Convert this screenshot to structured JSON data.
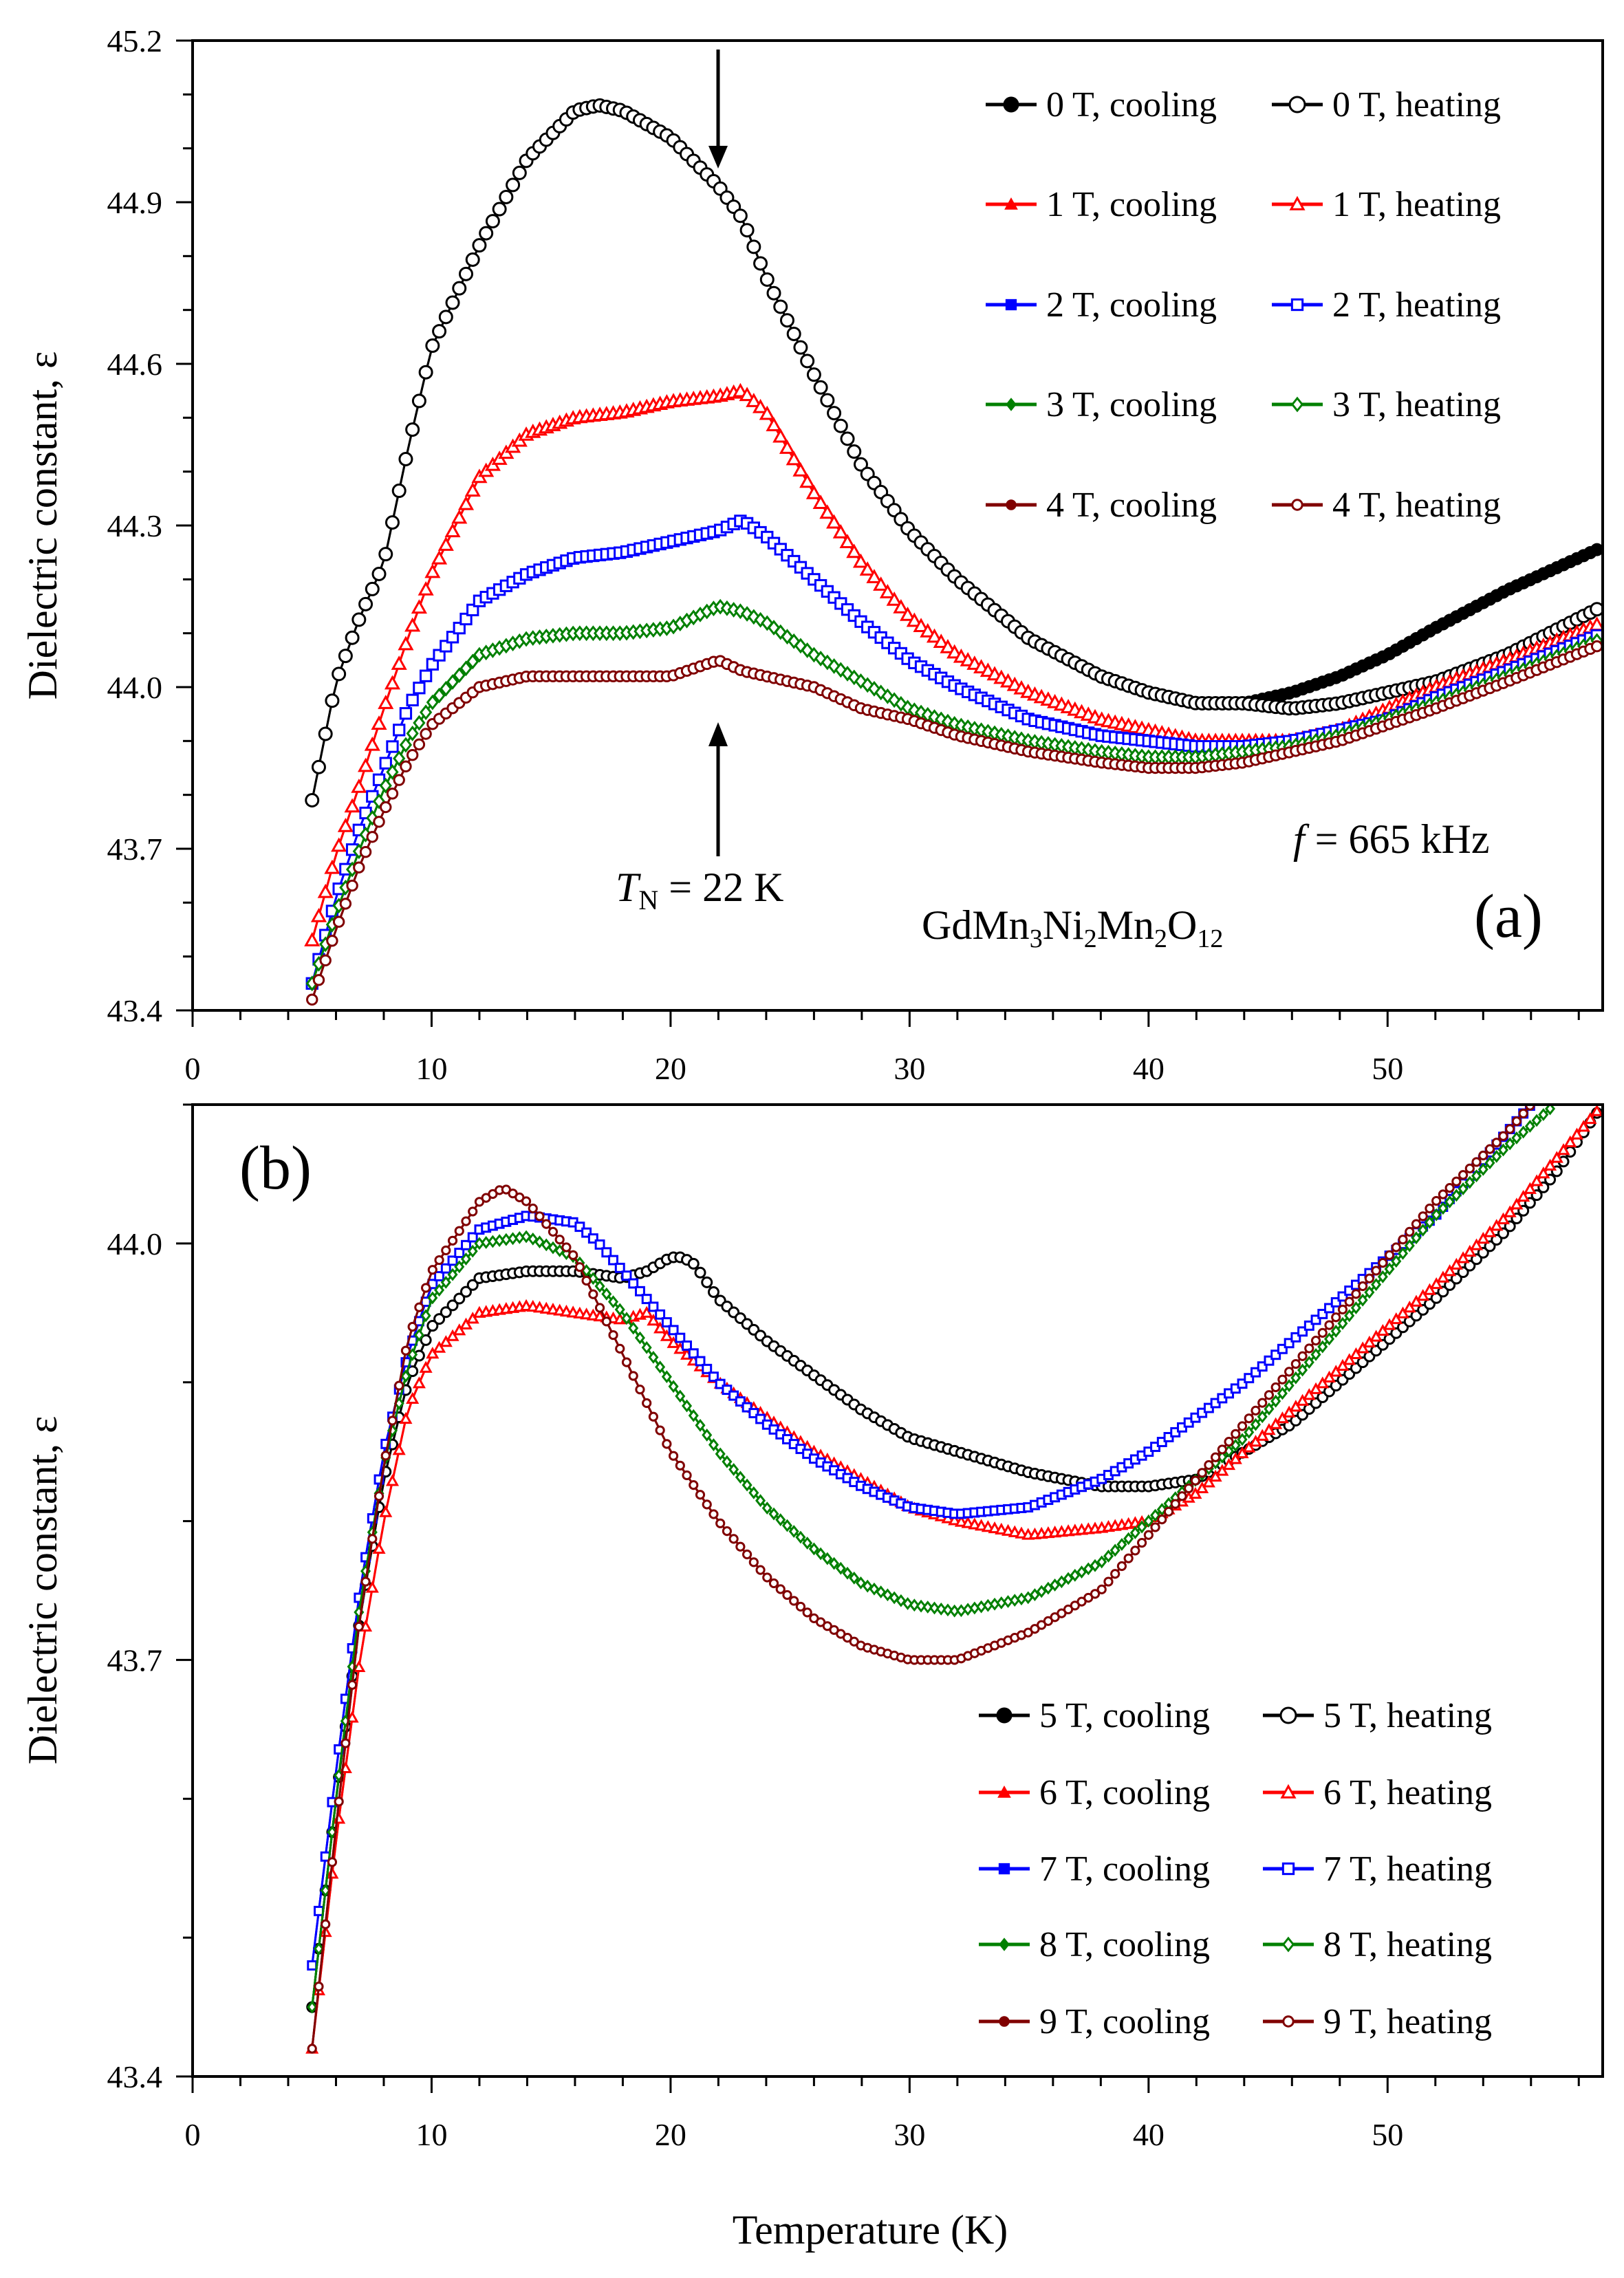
{
  "chart_data": [
    {
      "type": "scatter",
      "panel_label": "(a)",
      "xlabel": "",
      "ylabel": "Dielectric constant, ε",
      "xlim": [
        0,
        59
      ],
      "ylim": [
        43.4,
        45.2
      ],
      "xticks": [
        "0",
        "10",
        "20",
        "30",
        "40",
        "50"
      ],
      "yticks": [
        "43.4",
        "43.7",
        "44.0",
        "44.3",
        "44.6",
        "44.9",
        "45.2"
      ],
      "annotations": {
        "tn_italic": "T",
        "tn_sub": "N",
        "tn_rest": " = 22 K",
        "freq_italic": "f",
        "freq_rest": " = 665 kHz",
        "formula": [
          [
            "GdMn",
            ""
          ],
          [
            "3",
            "sub"
          ],
          [
            "Ni",
            ""
          ],
          [
            "2",
            "sub"
          ],
          [
            "Mn",
            ""
          ],
          [
            "2",
            "sub"
          ],
          [
            "O",
            ""
          ],
          [
            "12",
            "sub"
          ]
        ]
      },
      "legend_placement": "top-right",
      "series": [
        {
          "field": "0 T",
          "color": "#000000",
          "marker": "circle",
          "T": [
            5,
            6,
            7,
            8,
            9,
            10,
            12,
            14,
            16,
            17,
            18,
            20,
            22,
            23,
            24,
            26,
            28,
            30,
            32,
            35,
            38,
            40,
            42,
            44,
            46,
            48,
            50,
            52,
            55,
            59
          ],
          "eps": [
            43.79,
            44.01,
            44.13,
            44.23,
            44.44,
            44.63,
            44.82,
            44.98,
            45.07,
            45.08,
            45.07,
            45.02,
            44.93,
            44.87,
            44.76,
            44.58,
            44.41,
            44.29,
            44.2,
            44.09,
            44.02,
            43.99,
            43.97,
            43.97,
            43.96,
            43.97,
            43.99,
            44.01,
            44.06,
            44.15
          ],
          "eps_cooling": [
            43.79,
            44.01,
            44.13,
            44.23,
            44.44,
            44.63,
            44.82,
            44.98,
            45.07,
            45.08,
            45.07,
            45.02,
            44.93,
            44.87,
            44.76,
            44.58,
            44.41,
            44.29,
            44.2,
            44.09,
            44.02,
            43.99,
            43.97,
            43.97,
            43.99,
            44.02,
            44.06,
            44.11,
            44.18,
            44.26
          ],
          "legend": [
            "0 T, cooling",
            "0 T, heating"
          ]
        },
        {
          "field": "1 T",
          "color": "#ff0000",
          "marker": "triangle",
          "T": [
            5,
            6,
            7,
            8,
            9,
            10,
            12,
            14,
            16,
            18,
            20,
            22,
            23,
            24,
            26,
            28,
            30,
            32,
            35,
            38,
            40,
            42,
            44,
            46,
            48,
            50,
            52,
            55,
            59
          ],
          "eps": [
            43.53,
            43.69,
            43.82,
            43.96,
            44.09,
            44.21,
            44.39,
            44.47,
            44.5,
            44.51,
            44.53,
            44.54,
            44.55,
            44.51,
            44.36,
            44.23,
            44.13,
            44.06,
            43.99,
            43.94,
            43.92,
            43.9,
            43.9,
            43.9,
            43.92,
            43.96,
            44.0,
            44.05,
            44.12
          ],
          "legend": [
            "1 T, cooling",
            "1 T, heating"
          ]
        },
        {
          "field": "2 T",
          "color": "#0000ff",
          "marker": "square",
          "T": [
            5,
            6,
            7,
            8,
            9,
            10,
            12,
            14,
            16,
            18,
            20,
            22,
            23,
            24,
            26,
            28,
            30,
            32,
            35,
            38,
            40,
            42,
            44,
            46,
            48,
            50,
            52,
            55,
            59
          ],
          "eps": [
            43.45,
            43.61,
            43.74,
            43.85,
            43.96,
            44.04,
            44.16,
            44.21,
            44.24,
            44.25,
            44.27,
            44.29,
            44.31,
            44.28,
            44.2,
            44.12,
            44.05,
            44.0,
            43.94,
            43.91,
            43.9,
            43.89,
            43.89,
            43.9,
            43.92,
            43.94,
            43.98,
            44.03,
            44.1
          ],
          "legend": [
            "2 T, cooling",
            "2 T, heating"
          ]
        },
        {
          "field": "3 T",
          "color": "#008000",
          "marker": "diamond",
          "T": [
            5,
            6,
            7,
            8,
            9,
            10,
            12,
            14,
            16,
            18,
            20,
            22,
            23,
            24,
            26,
            28,
            30,
            32,
            35,
            38,
            40,
            42,
            44,
            46,
            48,
            50,
            52,
            55,
            59
          ],
          "eps": [
            43.45,
            43.58,
            43.7,
            43.81,
            43.9,
            43.97,
            44.06,
            44.09,
            44.1,
            44.1,
            44.11,
            44.15,
            44.14,
            44.12,
            44.06,
            44.01,
            43.96,
            43.93,
            43.9,
            43.88,
            43.87,
            43.87,
            43.88,
            43.89,
            43.91,
            43.94,
            43.97,
            44.02,
            44.09
          ],
          "legend": [
            "3 T, cooling",
            "3 T, heating"
          ]
        },
        {
          "field": "4 T",
          "color": "#800000",
          "marker": "circle-small",
          "T": [
            5,
            6,
            7,
            8,
            9,
            10,
            12,
            14,
            16,
            18,
            20,
            22,
            23,
            24,
            26,
            28,
            30,
            32,
            35,
            38,
            40,
            42,
            44,
            46,
            48,
            50,
            52,
            55,
            59
          ],
          "eps": [
            43.42,
            43.55,
            43.67,
            43.77,
            43.86,
            43.93,
            44.0,
            44.02,
            44.02,
            44.02,
            44.02,
            44.05,
            44.03,
            44.02,
            44.0,
            43.96,
            43.94,
            43.91,
            43.88,
            43.86,
            43.85,
            43.85,
            43.86,
            43.88,
            43.9,
            43.93,
            43.96,
            44.01,
            44.08
          ],
          "legend": [
            "4 T, cooling",
            "4 T, heating"
          ]
        }
      ]
    },
    {
      "type": "scatter",
      "panel_label": "(b)",
      "xlabel": "Temperature (K)",
      "ylabel": "Dielectric constant, ε",
      "xlim": [
        0,
        59
      ],
      "ylim": [
        43.4,
        44.1
      ],
      "xticks": [
        "0",
        "10",
        "20",
        "30",
        "40",
        "50"
      ],
      "yticks": [
        "43.4",
        "43.7",
        "44.0"
      ],
      "legend_placement": "bottom-right",
      "series": [
        {
          "field": "5 T",
          "color": "#000000",
          "marker": "circle",
          "T": [
            5,
            6,
            7,
            8,
            9,
            10,
            12,
            14,
            16,
            18,
            19,
            20,
            20.5,
            21,
            22,
            24,
            26,
            28,
            30,
            32,
            35,
            38,
            40,
            42,
            44,
            46,
            48,
            50,
            52,
            55,
            57,
            59
          ],
          "eps": [
            43.45,
            43.6,
            43.73,
            43.83,
            43.9,
            43.94,
            43.975,
            43.98,
            43.98,
            43.975,
            43.98,
            43.99,
            43.99,
            43.985,
            43.96,
            43.93,
            43.905,
            43.88,
            43.86,
            43.85,
            43.835,
            43.825,
            43.825,
            43.83,
            43.85,
            43.87,
            43.9,
            43.93,
            43.96,
            44.01,
            44.05,
            44.1
          ],
          "legend": [
            "5 T, cooling",
            "5 T, heating"
          ]
        },
        {
          "field": "6 T",
          "color": "#ff0000",
          "marker": "triangle",
          "T": [
            5,
            6,
            7,
            8,
            9,
            10,
            12,
            14,
            16,
            18,
            19,
            20,
            22,
            24,
            26,
            28,
            30,
            32,
            35,
            38,
            40,
            42,
            44,
            46,
            48,
            50,
            52,
            55,
            57,
            59
          ],
          "eps": [
            43.42,
            43.57,
            43.7,
            43.8,
            43.88,
            43.92,
            43.95,
            43.955,
            43.95,
            43.945,
            43.95,
            43.93,
            43.9,
            43.875,
            43.85,
            43.83,
            43.81,
            43.8,
            43.79,
            43.795,
            43.8,
            43.82,
            43.85,
            43.88,
            43.91,
            43.94,
            43.97,
            44.02,
            44.06,
            44.1
          ],
          "legend": [
            "6 T, cooling",
            "6 T, heating"
          ]
        },
        {
          "field": "7 T",
          "color": "#0000ff",
          "marker": "square",
          "T": [
            5,
            6,
            7,
            8,
            9,
            10,
            12,
            14,
            16,
            17,
            18,
            20,
            22,
            24,
            26,
            28,
            30,
            32,
            35,
            38,
            40,
            42,
            44,
            46,
            48,
            50,
            52,
            55,
            56
          ],
          "eps": [
            43.48,
            43.62,
            43.75,
            43.85,
            43.92,
            43.97,
            44.01,
            44.02,
            44.015,
            44.0,
            43.98,
            43.94,
            43.9,
            43.87,
            43.845,
            43.825,
            43.81,
            43.805,
            43.81,
            43.83,
            43.85,
            43.875,
            43.9,
            43.93,
            43.96,
            43.99,
            44.02,
            44.08,
            44.1
          ],
          "legend": [
            "7 T, cooling",
            "7 T, heating"
          ]
        },
        {
          "field": "8 T",
          "color": "#008000",
          "marker": "diamond",
          "T": [
            5,
            6,
            7,
            8,
            9,
            10,
            12,
            14,
            16,
            18,
            20,
            22,
            24,
            26,
            28,
            30,
            32,
            35,
            38,
            40,
            42,
            44,
            46,
            48,
            50,
            52,
            55,
            57
          ],
          "eps": [
            43.45,
            43.6,
            43.74,
            43.84,
            43.91,
            43.96,
            44.0,
            44.005,
            43.99,
            43.95,
            43.9,
            43.85,
            43.81,
            43.78,
            43.755,
            43.74,
            43.735,
            43.745,
            43.77,
            43.8,
            43.83,
            43.86,
            43.9,
            43.94,
            43.98,
            44.02,
            44.07,
            44.1
          ],
          "legend": [
            "8 T, cooling",
            "8 T, heating"
          ]
        },
        {
          "field": "9 T",
          "color": "#800000",
          "marker": "circle-small",
          "T": [
            5,
            6,
            7,
            8,
            9,
            10,
            12,
            13,
            14,
            16,
            18,
            20,
            22,
            24,
            26,
            28,
            30,
            32,
            35,
            38,
            40,
            42,
            44,
            46,
            48,
            50,
            52,
            55,
            56
          ],
          "eps": [
            43.42,
            43.58,
            43.73,
            43.84,
            43.93,
            43.98,
            44.03,
            44.04,
            44.03,
            43.99,
            43.92,
            43.85,
            43.8,
            43.76,
            43.73,
            43.71,
            43.7,
            43.7,
            43.72,
            43.75,
            43.79,
            43.83,
            43.87,
            43.91,
            43.95,
            43.99,
            44.03,
            44.08,
            44.1
          ],
          "legend": [
            "9 T, cooling",
            "9 T, heating"
          ]
        }
      ]
    }
  ]
}
